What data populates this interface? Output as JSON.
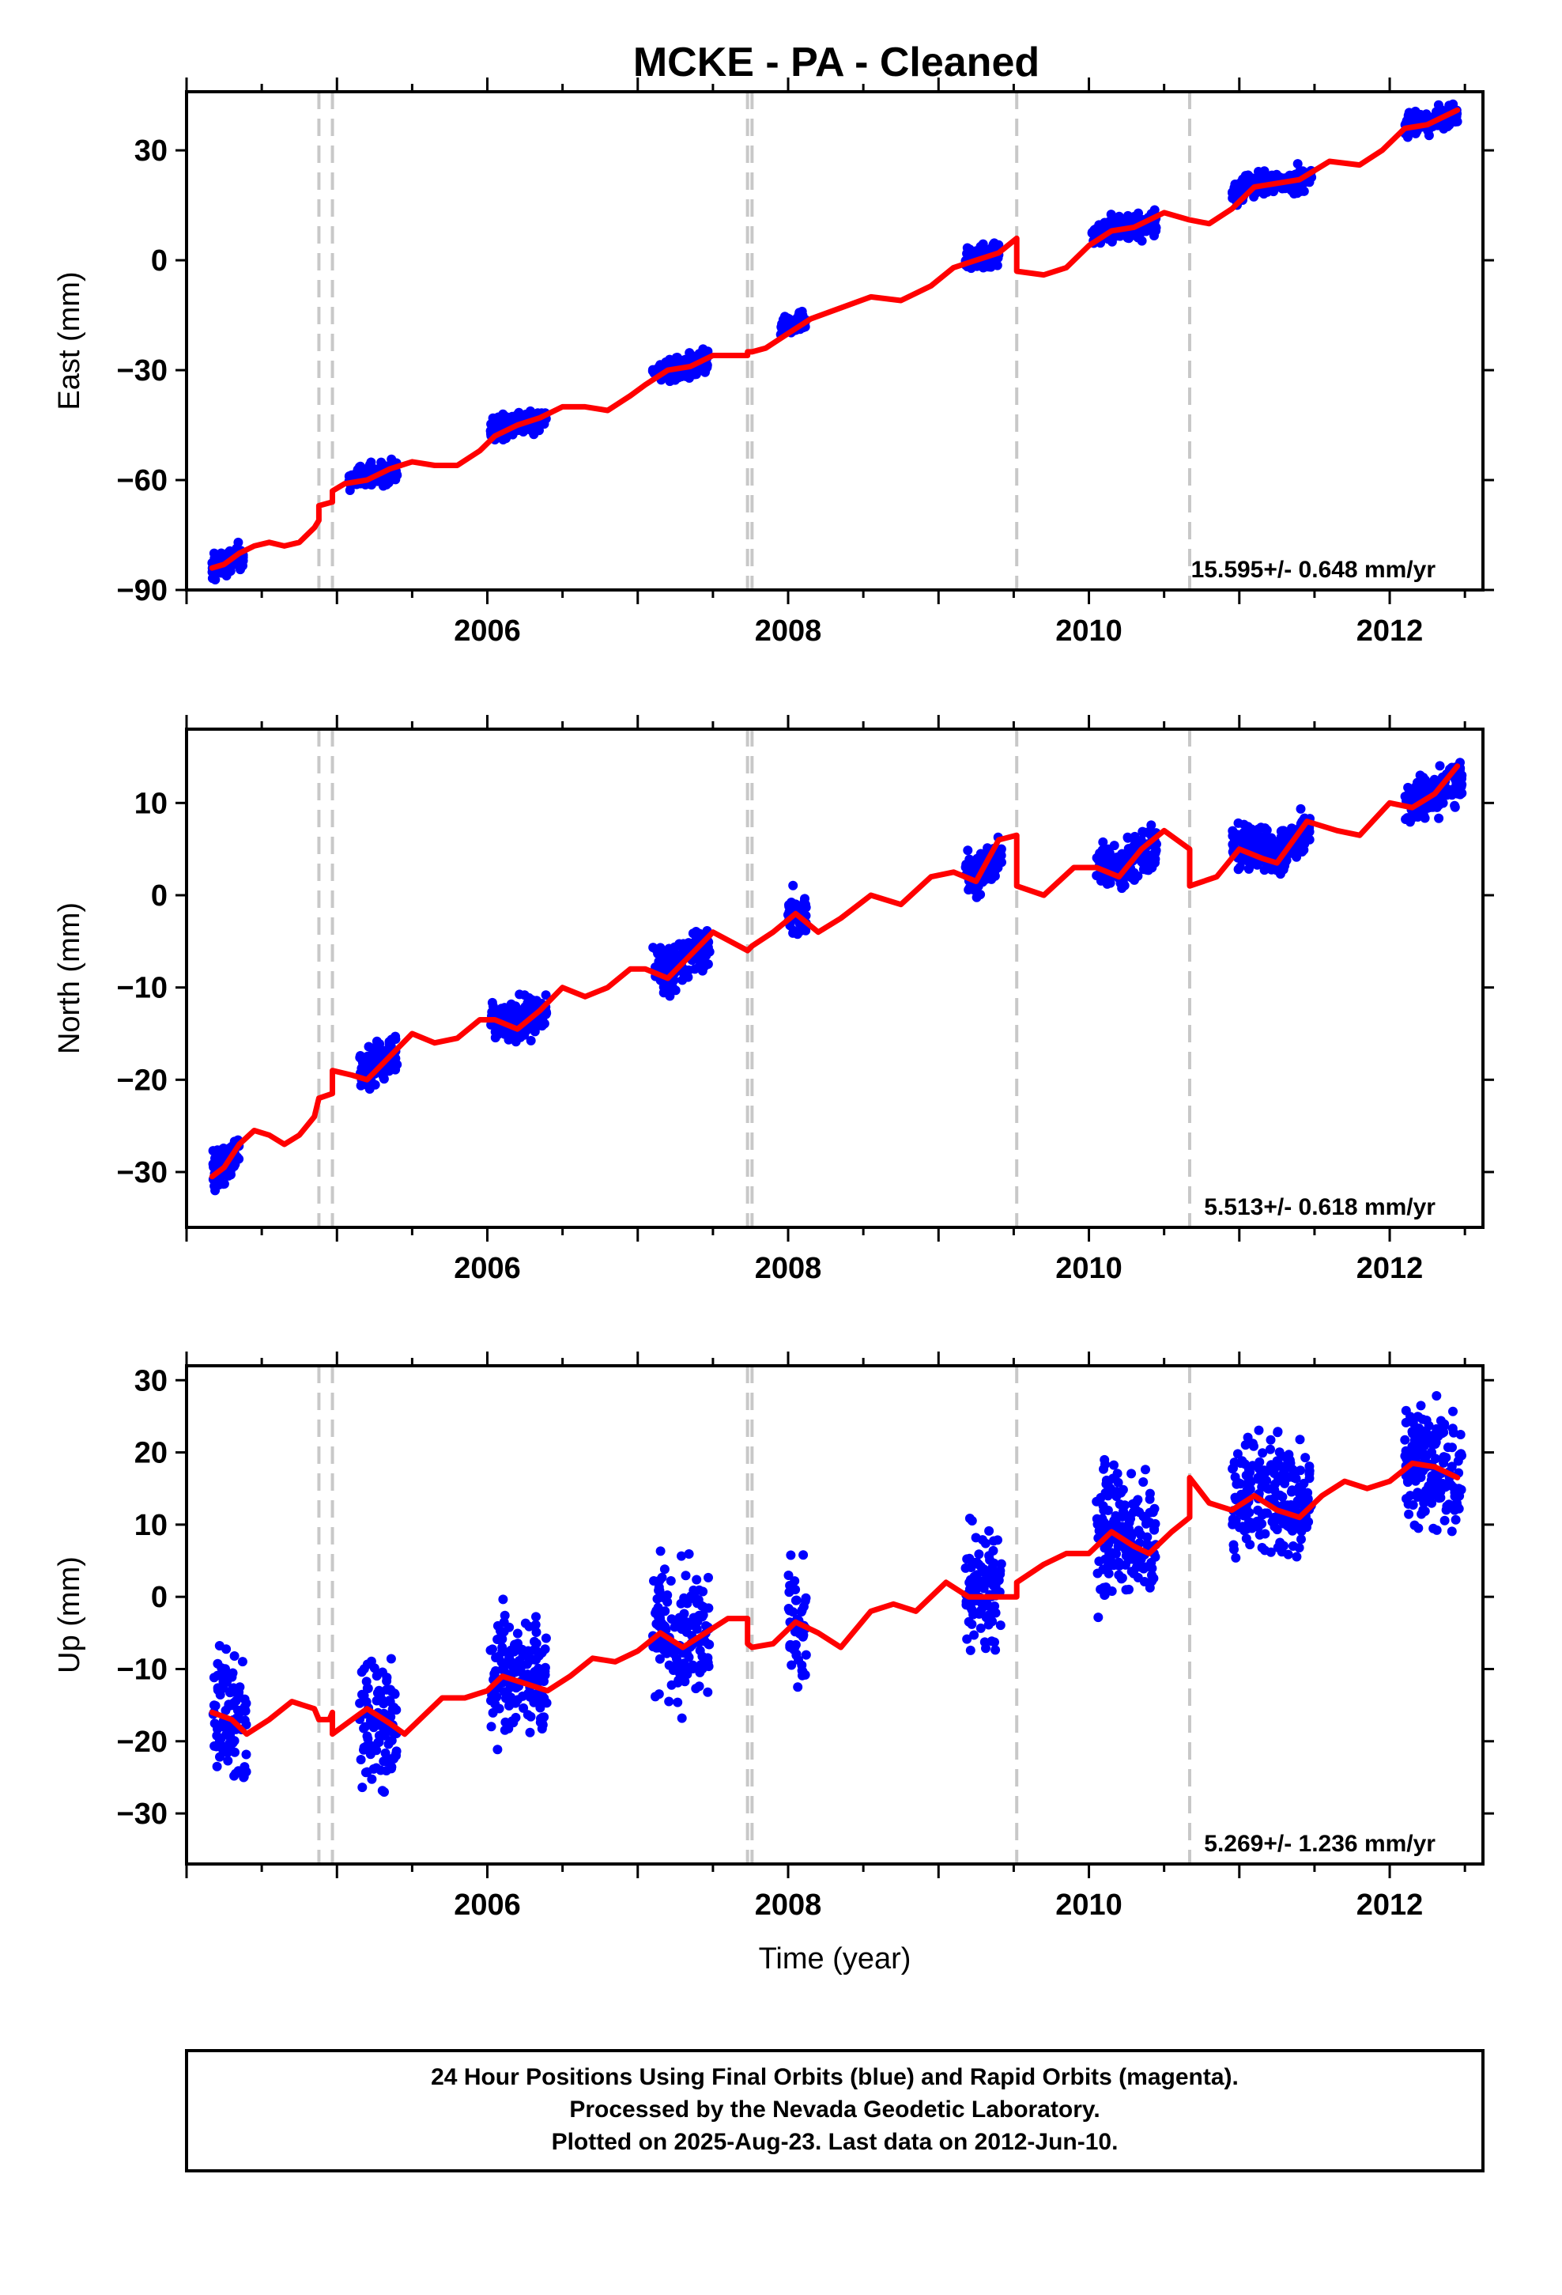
{
  "title": "MCKE  - PA - Cleaned",
  "colors": {
    "final_orbits": "#0000ff",
    "model": "#ff0000",
    "event_lines": "#c8c8c8"
  },
  "footer": [
    "24 Hour Positions Using Final Orbits (blue) and Rapid Orbits (magenta).",
    "Processed by the Nevada Geodetic Laboratory.",
    "Plotted on 2025-Aug-23. Last data on 2012-Jun-10."
  ],
  "chart_data": [
    {
      "type": "scatter",
      "component": "east",
      "ylabel": "East (mm)",
      "xlabel": "",
      "xlim": [
        2004.0,
        2012.62
      ],
      "ylim": [
        -90,
        46
      ],
      "yticks": [
        -90,
        -60,
        -30,
        0,
        30
      ],
      "xticks": [
        2006,
        2008,
        2010,
        2012
      ],
      "rate_label": "15.595+/- 0.648 mm/yr",
      "event_lines": [
        2004.88,
        2004.97,
        2007.73,
        2007.76,
        2009.52,
        2010.67
      ],
      "data_segments": [
        {
          "start": 2004.17,
          "end": 2004.38,
          "level": -83
        },
        {
          "start": 2005.08,
          "end": 2005.4,
          "level": -58
        },
        {
          "start": 2006.02,
          "end": 2006.4,
          "level": -44
        },
        {
          "start": 2007.1,
          "end": 2007.48,
          "level": -29
        },
        {
          "start": 2007.95,
          "end": 2008.12,
          "level": -15
        },
        {
          "start": 2009.18,
          "end": 2009.4,
          "level": 1
        },
        {
          "start": 2010.02,
          "end": 2010.45,
          "level": 9
        },
        {
          "start": 2010.95,
          "end": 2011.48,
          "level": 22
        },
        {
          "start": 2012.1,
          "end": 2012.45,
          "level": 39
        }
      ],
      "model_curve": [
        [
          2004.17,
          -84
        ],
        [
          2004.25,
          -83
        ],
        [
          2004.35,
          -80
        ],
        [
          2004.45,
          -78
        ],
        [
          2004.55,
          -77
        ],
        [
          2004.65,
          -78
        ],
        [
          2004.75,
          -77
        ],
        [
          2004.85,
          -73
        ],
        [
          2004.88,
          -71
        ],
        [
          2004.88,
          -67
        ],
        [
          2004.97,
          -66
        ],
        [
          2004.97,
          -63
        ],
        [
          2005.05,
          -61
        ],
        [
          2005.2,
          -60
        ],
        [
          2005.35,
          -57
        ],
        [
          2005.5,
          -55
        ],
        [
          2005.65,
          -56
        ],
        [
          2005.8,
          -56
        ],
        [
          2005.95,
          -52
        ],
        [
          2006.05,
          -48
        ],
        [
          2006.2,
          -45
        ],
        [
          2006.35,
          -43
        ],
        [
          2006.5,
          -40
        ],
        [
          2006.65,
          -40
        ],
        [
          2006.8,
          -41
        ],
        [
          2006.95,
          -37
        ],
        [
          2007.05,
          -34
        ],
        [
          2007.2,
          -30
        ],
        [
          2007.35,
          -29
        ],
        [
          2007.5,
          -26
        ],
        [
          2007.65,
          -26
        ],
        [
          2007.73,
          -26
        ],
        [
          2007.73,
          -25
        ],
        [
          2007.76,
          -25
        ],
        [
          2007.85,
          -24
        ],
        [
          2008.0,
          -20
        ],
        [
          2008.15,
          -16
        ],
        [
          2008.35,
          -13
        ],
        [
          2008.55,
          -10
        ],
        [
          2008.75,
          -11
        ],
        [
          2008.95,
          -7
        ],
        [
          2009.1,
          -2
        ],
        [
          2009.25,
          0
        ],
        [
          2009.4,
          2
        ],
        [
          2009.52,
          6
        ],
        [
          2009.52,
          -3
        ],
        [
          2009.7,
          -4
        ],
        [
          2009.85,
          -2
        ],
        [
          2010.0,
          4
        ],
        [
          2010.15,
          8
        ],
        [
          2010.3,
          9
        ],
        [
          2010.5,
          13
        ],
        [
          2010.67,
          11
        ],
        [
          2010.8,
          10
        ],
        [
          2010.95,
          14
        ],
        [
          2011.1,
          20
        ],
        [
          2011.25,
          21
        ],
        [
          2011.4,
          22
        ],
        [
          2011.6,
          27
        ],
        [
          2011.8,
          26
        ],
        [
          2011.95,
          30
        ],
        [
          2012.1,
          36
        ],
        [
          2012.25,
          37
        ],
        [
          2012.45,
          41
        ]
      ]
    },
    {
      "type": "scatter",
      "component": "north",
      "ylabel": "North (mm)",
      "xlabel": "",
      "xlim": [
        2004.0,
        2012.62
      ],
      "ylim": [
        -36,
        18
      ],
      "yticks": [
        -30,
        -20,
        -10,
        0,
        10
      ],
      "xticks": [
        2006,
        2008,
        2010,
        2012
      ],
      "rate_label": "5.513+/- 0.618 mm/yr",
      "event_lines": [
        2004.88,
        2004.97,
        2007.73,
        2007.76,
        2009.52,
        2010.67
      ],
      "data_segments": [
        {
          "start": 2004.17,
          "end": 2004.35,
          "level": -29
        },
        {
          "start": 2005.15,
          "end": 2005.4,
          "level": -18
        },
        {
          "start": 2006.02,
          "end": 2006.4,
          "level": -13
        },
        {
          "start": 2007.1,
          "end": 2007.48,
          "level": -7
        },
        {
          "start": 2008.0,
          "end": 2008.12,
          "level": -2
        },
        {
          "start": 2009.18,
          "end": 2009.42,
          "level": 3
        },
        {
          "start": 2010.05,
          "end": 2010.45,
          "level": 4
        },
        {
          "start": 2010.95,
          "end": 2011.48,
          "level": 6
        },
        {
          "start": 2012.1,
          "end": 2012.48,
          "level": 11
        }
      ],
      "model_curve": [
        [
          2004.17,
          -30.5
        ],
        [
          2004.25,
          -29.5
        ],
        [
          2004.35,
          -27
        ],
        [
          2004.45,
          -25.5
        ],
        [
          2004.55,
          -26
        ],
        [
          2004.65,
          -27
        ],
        [
          2004.75,
          -26
        ],
        [
          2004.85,
          -24
        ],
        [
          2004.88,
          -22
        ],
        [
          2004.97,
          -21.5
        ],
        [
          2004.97,
          -19
        ],
        [
          2005.1,
          -19.5
        ],
        [
          2005.2,
          -20
        ],
        [
          2005.35,
          -17.5
        ],
        [
          2005.5,
          -15
        ],
        [
          2005.65,
          -16
        ],
        [
          2005.8,
          -15.5
        ],
        [
          2005.95,
          -13.5
        ],
        [
          2006.05,
          -13.5
        ],
        [
          2006.2,
          -14.5
        ],
        [
          2006.35,
          -12.5
        ],
        [
          2006.5,
          -10
        ],
        [
          2006.65,
          -11
        ],
        [
          2006.8,
          -10
        ],
        [
          2006.95,
          -8
        ],
        [
          2007.05,
          -8
        ],
        [
          2007.2,
          -9
        ],
        [
          2007.35,
          -6.5
        ],
        [
          2007.5,
          -4
        ],
        [
          2007.73,
          -6
        ],
        [
          2007.76,
          -5.5
        ],
        [
          2007.9,
          -4
        ],
        [
          2008.05,
          -2
        ],
        [
          2008.2,
          -4
        ],
        [
          2008.35,
          -2.5
        ],
        [
          2008.55,
          0
        ],
        [
          2008.75,
          -1
        ],
        [
          2008.95,
          2
        ],
        [
          2009.1,
          2.5
        ],
        [
          2009.25,
          1.5
        ],
        [
          2009.4,
          6
        ],
        [
          2009.52,
          6.5
        ],
        [
          2009.52,
          1
        ],
        [
          2009.7,
          0
        ],
        [
          2009.9,
          3
        ],
        [
          2010.05,
          3
        ],
        [
          2010.2,
          2
        ],
        [
          2010.35,
          5
        ],
        [
          2010.5,
          7
        ],
        [
          2010.67,
          5
        ],
        [
          2010.67,
          1
        ],
        [
          2010.85,
          2
        ],
        [
          2011.0,
          5
        ],
        [
          2011.15,
          4
        ],
        [
          2011.25,
          3.5
        ],
        [
          2011.45,
          8
        ],
        [
          2011.65,
          7
        ],
        [
          2011.8,
          6.5
        ],
        [
          2012.0,
          10
        ],
        [
          2012.15,
          9.5
        ],
        [
          2012.3,
          11
        ],
        [
          2012.45,
          14
        ]
      ]
    },
    {
      "type": "scatter",
      "component": "up",
      "ylabel": "Up (mm)",
      "xlabel": "Time (year)",
      "xlim": [
        2004.0,
        2012.62
      ],
      "ylim": [
        -37,
        32
      ],
      "yticks": [
        -30,
        -20,
        -10,
        0,
        10,
        20,
        30
      ],
      "xticks": [
        2006,
        2008,
        2010,
        2012
      ],
      "rate_label": "5.269+/- 1.236 mm/yr",
      "event_lines": [
        2004.88,
        2004.97,
        2007.73,
        2007.76,
        2009.52,
        2010.67
      ],
      "data_segments": [
        {
          "start": 2004.17,
          "end": 2004.4,
          "level": -17
        },
        {
          "start": 2005.15,
          "end": 2005.4,
          "level": -18
        },
        {
          "start": 2006.02,
          "end": 2006.4,
          "level": -9
        },
        {
          "start": 2007.1,
          "end": 2007.48,
          "level": -5
        },
        {
          "start": 2008.0,
          "end": 2008.12,
          "level": -3
        },
        {
          "start": 2009.18,
          "end": 2009.42,
          "level": 1
        },
        {
          "start": 2010.05,
          "end": 2010.45,
          "level": 8
        },
        {
          "start": 2010.95,
          "end": 2011.48,
          "level": 15
        },
        {
          "start": 2012.1,
          "end": 2012.48,
          "level": 18
        }
      ],
      "model_curve": [
        [
          2004.17,
          -16
        ],
        [
          2004.3,
          -17
        ],
        [
          2004.4,
          -19
        ],
        [
          2004.55,
          -17
        ],
        [
          2004.7,
          -14.5
        ],
        [
          2004.85,
          -15.5
        ],
        [
          2004.88,
          -17
        ],
        [
          2004.95,
          -17
        ],
        [
          2004.97,
          -16
        ],
        [
          2004.97,
          -19
        ],
        [
          2005.1,
          -17
        ],
        [
          2005.2,
          -15.5
        ],
        [
          2005.35,
          -17.5
        ],
        [
          2005.45,
          -19
        ],
        [
          2005.55,
          -17
        ],
        [
          2005.7,
          -14
        ],
        [
          2005.85,
          -14
        ],
        [
          2006.0,
          -13
        ],
        [
          2006.1,
          -11
        ],
        [
          2006.25,
          -12
        ],
        [
          2006.4,
          -13
        ],
        [
          2006.55,
          -11
        ],
        [
          2006.7,
          -8.5
        ],
        [
          2006.85,
          -9
        ],
        [
          2007.0,
          -7.5
        ],
        [
          2007.15,
          -5
        ],
        [
          2007.3,
          -7
        ],
        [
          2007.45,
          -5
        ],
        [
          2007.6,
          -3
        ],
        [
          2007.73,
          -3
        ],
        [
          2007.73,
          -6.5
        ],
        [
          2007.76,
          -7
        ],
        [
          2007.9,
          -6.5
        ],
        [
          2008.05,
          -3.5
        ],
        [
          2008.2,
          -5
        ],
        [
          2008.35,
          -7
        ],
        [
          2008.55,
          -2
        ],
        [
          2008.7,
          -1
        ],
        [
          2008.85,
          -2
        ],
        [
          2009.05,
          2
        ],
        [
          2009.2,
          0
        ],
        [
          2009.35,
          0
        ],
        [
          2009.52,
          0
        ],
        [
          2009.52,
          2
        ],
        [
          2009.7,
          4.5
        ],
        [
          2009.85,
          6
        ],
        [
          2010.0,
          6
        ],
        [
          2010.15,
          9
        ],
        [
          2010.3,
          7
        ],
        [
          2010.4,
          6
        ],
        [
          2010.55,
          9
        ],
        [
          2010.67,
          11
        ],
        [
          2010.67,
          16.5
        ],
        [
          2010.8,
          13
        ],
        [
          2010.95,
          12
        ],
        [
          2011.1,
          14
        ],
        [
          2011.25,
          12
        ],
        [
          2011.4,
          11
        ],
        [
          2011.55,
          14
        ],
        [
          2011.7,
          16
        ],
        [
          2011.85,
          15
        ],
        [
          2012.0,
          16
        ],
        [
          2012.15,
          18.5
        ],
        [
          2012.3,
          18
        ],
        [
          2012.45,
          16.5
        ]
      ]
    }
  ]
}
